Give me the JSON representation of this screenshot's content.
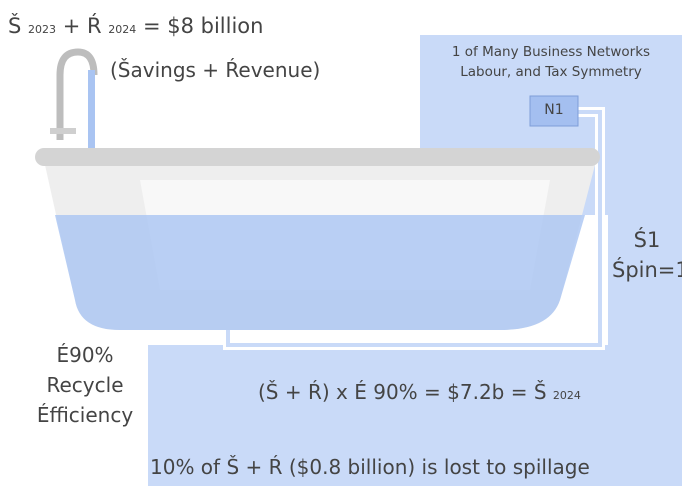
{
  "top_equation": {
    "parts": [
      "Š",
      "2023",
      "+ Ŕ",
      "2024",
      "= $8 billion"
    ],
    "subtitle": "(Šavings + Ŕevenue)"
  },
  "network": {
    "title_lines": [
      "1 of Many Business Networks",
      "Labour, and Tax Symmetry"
    ],
    "node": "N1"
  },
  "spin": {
    "lines": [
      "Ś1",
      "Śpin=1"
    ]
  },
  "efficiency": {
    "lines": [
      "É90%",
      "Recycle",
      "Éfficiency"
    ]
  },
  "recycle_equation": {
    "parts": [
      "(Š + Ŕ) x É 90% = $7.2b = Š",
      "2024"
    ]
  },
  "spillage": "10% of Š + Ŕ ($0.8 billion) is lost to spillage"
}
